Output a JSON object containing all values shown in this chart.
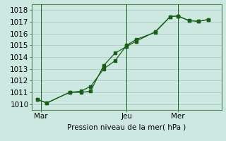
{
  "title": "",
  "xlabel": "Pression niveau de la mer( hPa )",
  "ylabel": "",
  "background_color": "#cce8e0",
  "grid_color": "#b0ccc8",
  "line_color": "#1a5e1a",
  "marker_color": "#1a5e1a",
  "ylim": [
    1009.5,
    1018.5
  ],
  "xlim": [
    0,
    10
  ],
  "series1_x": [
    0.3,
    0.8,
    2.0,
    2.6,
    3.1,
    3.8,
    4.4,
    5.0,
    5.5,
    6.5,
    7.3,
    7.7,
    8.3,
    8.8,
    9.3
  ],
  "series1_y": [
    1010.4,
    1010.1,
    1011.0,
    1011.0,
    1011.1,
    1013.3,
    1014.35,
    1014.9,
    1015.35,
    1016.15,
    1017.45,
    1017.5,
    1017.1,
    1017.05,
    1017.2
  ],
  "series2_x": [
    0.3,
    0.8,
    2.0,
    2.6,
    3.1,
    3.8,
    4.4,
    5.0,
    5.5,
    6.5,
    7.3,
    7.7,
    8.3,
    8.8,
    9.3
  ],
  "series2_y": [
    1010.4,
    1010.1,
    1011.0,
    1011.1,
    1011.5,
    1013.0,
    1013.7,
    1015.0,
    1015.5,
    1016.1,
    1017.45,
    1017.5,
    1017.1,
    1017.05,
    1017.2
  ],
  "yticks": [
    1010,
    1011,
    1012,
    1013,
    1014,
    1015,
    1016,
    1017,
    1018
  ],
  "xtick_positions": [
    0.5,
    5.0,
    7.7
  ],
  "xtick_labels": [
    "Mar",
    "Jeu",
    "Mer"
  ],
  "vlines": [
    0.5,
    5.0,
    7.7
  ],
  "fontsize": 7.5
}
